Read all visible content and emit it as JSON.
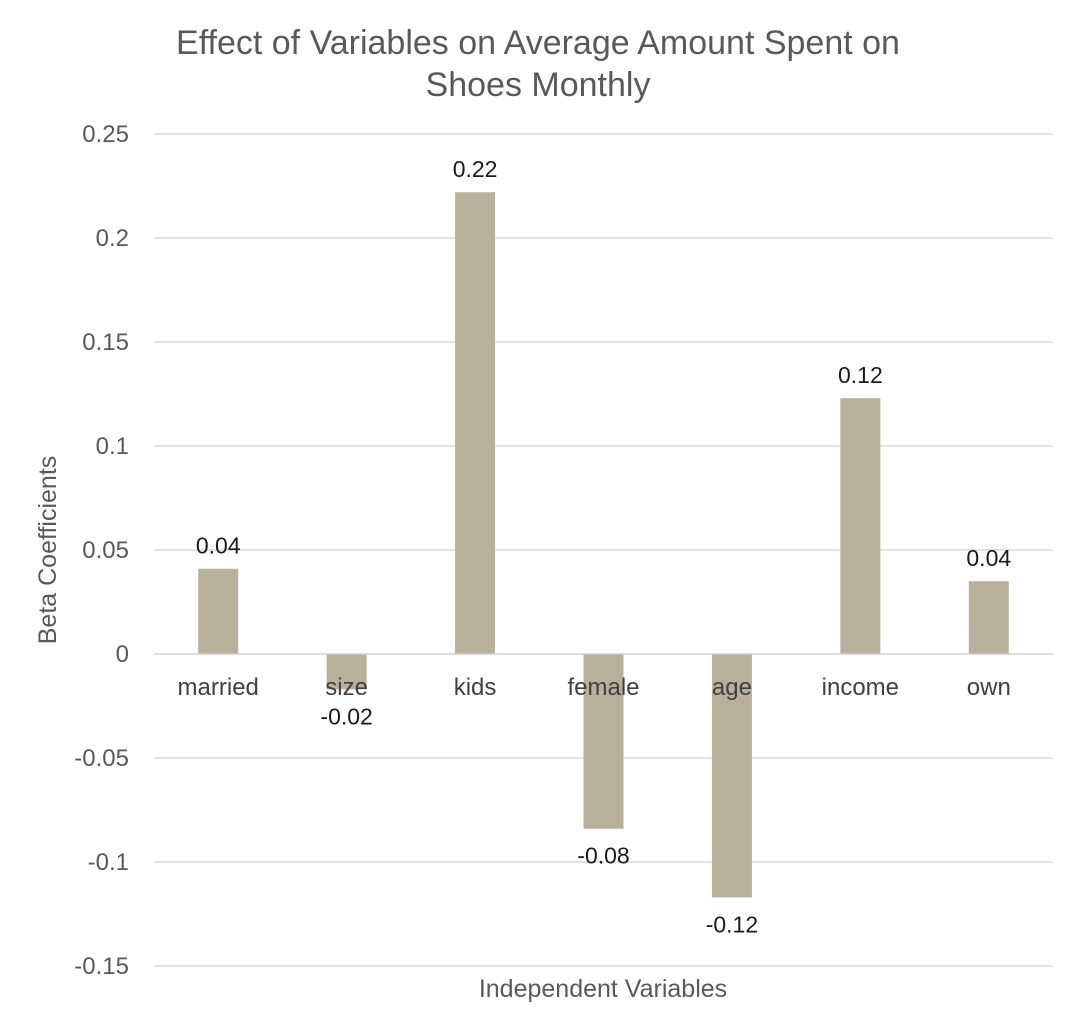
{
  "chart_data": {
    "type": "bar",
    "title": "Effect of Variables on Average Amount Spent on Shoes Monthly",
    "title_lines": [
      "Effect of Variables on Average Amount Spent on",
      "Shoes Monthly"
    ],
    "xlabel": "Independent Variables",
    "ylabel": "Beta Coefficients",
    "categories": [
      "married",
      "size",
      "kids",
      "female",
      "age",
      "income",
      "own"
    ],
    "values": [
      0.041,
      -0.017,
      0.222,
      -0.084,
      -0.117,
      0.123,
      0.035
    ],
    "data_labels": [
      "0.04",
      "-0.02",
      "0.22",
      "-0.08",
      "-0.12",
      "0.12",
      "0.04"
    ],
    "ylim": [
      -0.15,
      0.25
    ],
    "yticks": [
      0.25,
      0.2,
      0.15,
      0.1,
      0.05,
      0,
      -0.05,
      -0.1,
      -0.15
    ],
    "ytick_labels": [
      "0.25",
      "0.2",
      "0.15",
      "0.1",
      "0.05",
      "0",
      "-0.05",
      "-0.1",
      "-0.15"
    ],
    "grid": true,
    "legend": "none",
    "bar_color": "#b9b09c"
  }
}
